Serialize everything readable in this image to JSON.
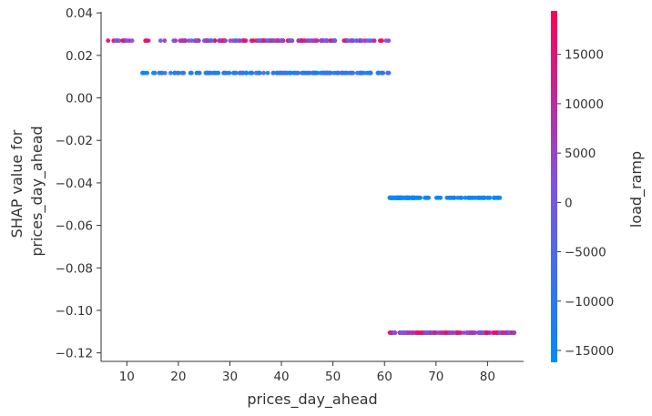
{
  "chart_data": {
    "type": "scatter",
    "xlabel": "prices_day_ahead",
    "ylabel_lines": [
      "SHAP value for",
      "prices_day_ahead"
    ],
    "xlim": [
      5,
      87
    ],
    "ylim": [
      -0.124,
      0.0405
    ],
    "xticks": [
      10,
      20,
      30,
      40,
      50,
      60,
      70,
      80
    ],
    "yticks": [
      0.04,
      0.02,
      0.0,
      -0.02,
      -0.04,
      -0.06,
      -0.08,
      -0.1,
      -0.12
    ],
    "ytick_labels": [
      "0.04",
      "0.02",
      "0.00",
      "−0.02",
      "−0.04",
      "−0.06",
      "−0.08",
      "−0.10",
      "−0.12"
    ],
    "grid": false,
    "colorbar": {
      "label": "load_ramp",
      "range": [
        -16200,
        19400
      ],
      "ticks": [
        15000,
        10000,
        5000,
        0,
        -5000,
        -10000,
        -15000
      ],
      "tick_labels": [
        "15000",
        "10000",
        "5000",
        "0",
        "−5000",
        "−10000",
        "−15000"
      ],
      "color_low": "#008afb",
      "color_high": "#ff0052"
    },
    "clusters": [
      {
        "shap": 0.0269,
        "x_range": [
          6,
          61
        ],
        "dense_from": 20,
        "color_value_range": [
          -6000,
          19000
        ]
      },
      {
        "shap": 0.0117,
        "x_range": [
          13,
          61
        ],
        "dense_from": 25,
        "color_value_range": [
          -16000,
          -5000
        ]
      },
      {
        "shap": -0.047,
        "x_range": [
          61,
          83
        ],
        "dense_from": 61,
        "color_value_range": [
          -16000,
          -14000
        ]
      },
      {
        "shap": -0.1105,
        "x_range": [
          61,
          85.5
        ],
        "dense_from": 61,
        "color_value_range": [
          -2000,
          19000
        ]
      }
    ]
  }
}
